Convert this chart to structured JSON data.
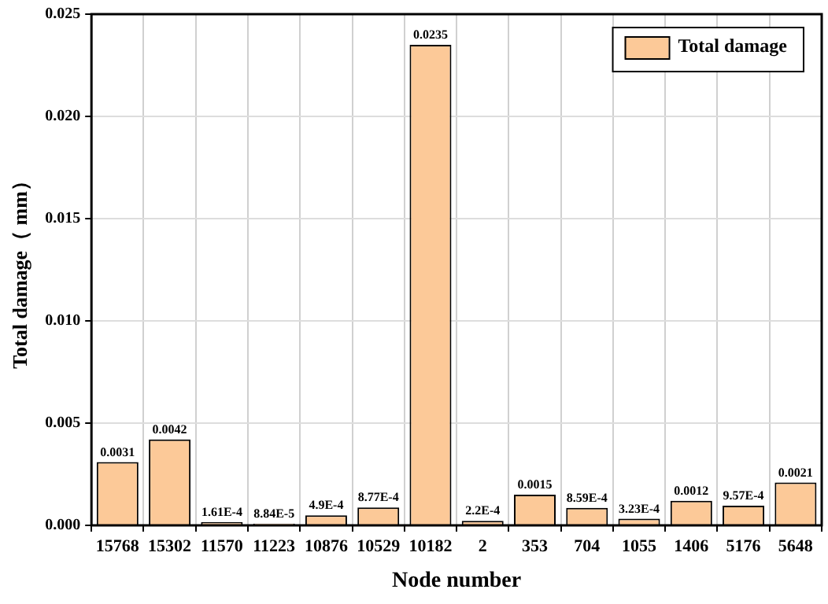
{
  "chart_data": {
    "type": "bar",
    "xlabel": "Node number",
    "ylabel": "Total damage（ mm）",
    "categories": [
      "15768",
      "15302",
      "11570",
      "11223",
      "10876",
      "10529",
      "10182",
      "2",
      "353",
      "704",
      "1055",
      "1406",
      "5176",
      "5648"
    ],
    "series": [
      {
        "name": "Total damage",
        "color": "#fcc998",
        "values": [
          0.0031,
          0.0042,
          0.000161,
          8.84e-05,
          0.00049,
          0.000877,
          0.0235,
          0.00022,
          0.0015,
          0.000859,
          0.000323,
          0.0012,
          0.000957,
          0.0021
        ],
        "value_labels": [
          "0.0031",
          "0.0042",
          "1.61E-4",
          "8.84E-5",
          "4.9E-4",
          "8.77E-4",
          "0.0235",
          "2.2E-4",
          "0.0015",
          "8.59E-4",
          "3.23E-4",
          "0.0012",
          "9.57E-4",
          "0.0021"
        ]
      }
    ],
    "ylim": [
      0,
      0.025
    ],
    "yticks": [
      {
        "value": 0,
        "label": "0.000"
      },
      {
        "value": 0.005,
        "label": "0.005"
      },
      {
        "value": 0.01,
        "label": "0.010"
      },
      {
        "value": 0.015,
        "label": "0.015"
      },
      {
        "value": 0.02,
        "label": "0.020"
      },
      {
        "value": 0.025,
        "label": "0.025"
      }
    ],
    "grid": true,
    "legend": "top right"
  }
}
